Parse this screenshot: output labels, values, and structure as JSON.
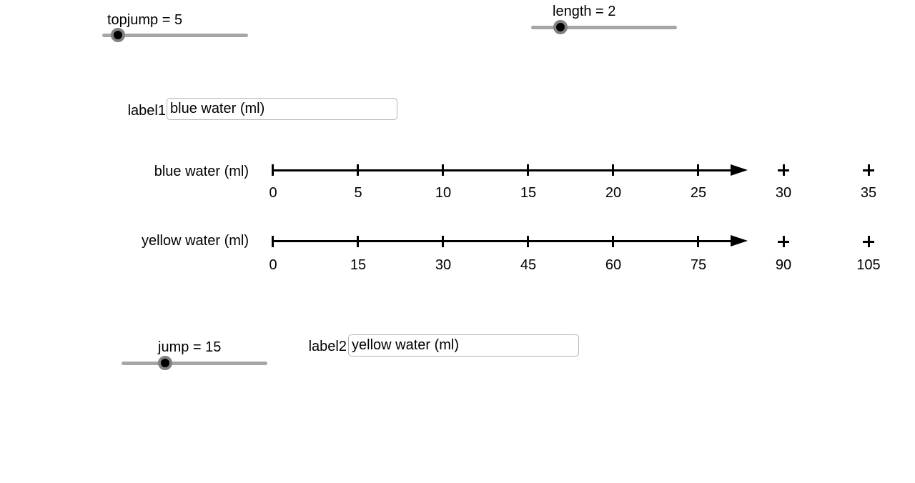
{
  "sliders": {
    "topjump": {
      "label": "topjump = 5"
    },
    "length": {
      "label": "length = 2"
    },
    "jump": {
      "label": "jump = 15"
    }
  },
  "text_inputs": {
    "label1": {
      "caption": "label1",
      "value": "blue water (ml)"
    },
    "label2": {
      "caption": "label2",
      "value": "yellow water (ml)"
    }
  },
  "number_lines": [
    {
      "id": "blue",
      "label": "blue water (ml)",
      "tick_labels": [
        "0",
        "5",
        "10",
        "15",
        "20",
        "25"
      ],
      "plus_labels": [
        "30",
        "35"
      ]
    },
    {
      "id": "yellow",
      "label": "yellow water (ml)",
      "tick_labels": [
        "0",
        "15",
        "30",
        "45",
        "60",
        "75"
      ],
      "plus_labels": [
        "90",
        "105"
      ]
    }
  ],
  "colors": {
    "background": "#ffffff",
    "text": "#000000",
    "axis": "#000000",
    "track": "#a6a6a6",
    "handle_ring": "#828282",
    "handle_core": "#000000",
    "input_border": "#b5b5b5"
  }
}
